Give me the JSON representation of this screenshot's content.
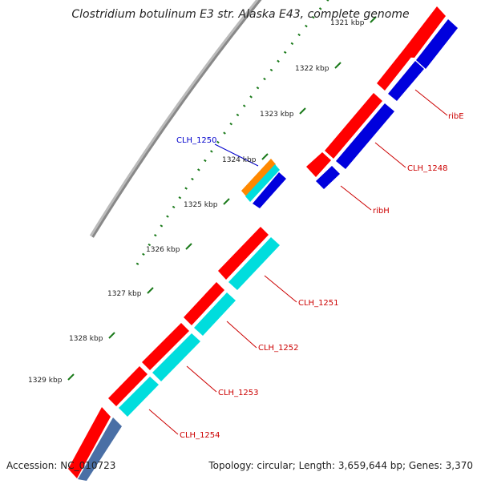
{
  "title": "Clostridium botulinum E3 str. Alaska E43, complete genome",
  "accession": "Accession: NC_010723",
  "summary": "Topology: circular; Length: 3,659,644 bp; Genes: 3,370",
  "colors": {
    "backbone": "#888888",
    "cds": "#ff0000",
    "gene": "#0000dd",
    "other_cds": "#00dddd",
    "rrna": "#ff8800",
    "tick": "#1a7a1a",
    "label_red": "#cc0000",
    "label_blue": "#0000cc"
  },
  "ruler": [
    {
      "label": "1321 kbp"
    },
    {
      "label": "1322 kbp"
    },
    {
      "label": "1323 kbp"
    },
    {
      "label": "1324 kbp"
    },
    {
      "label": "1325 kbp"
    },
    {
      "label": "1326 kbp"
    },
    {
      "label": "1327 kbp"
    },
    {
      "label": "1328 kbp"
    },
    {
      "label": "1329 kbp"
    }
  ],
  "features": [
    {
      "label": "ribE",
      "color": "label_red"
    },
    {
      "label": "CLH_1248",
      "color": "label_red"
    },
    {
      "label": "ribH",
      "color": "label_red"
    },
    {
      "label": "CLH_1250",
      "color": "label_blue"
    },
    {
      "label": "CLH_1251",
      "color": "label_red"
    },
    {
      "label": "CLH_1252",
      "color": "label_red"
    },
    {
      "label": "CLH_1253",
      "color": "label_red"
    },
    {
      "label": "CLH_1254",
      "color": "label_red"
    }
  ]
}
